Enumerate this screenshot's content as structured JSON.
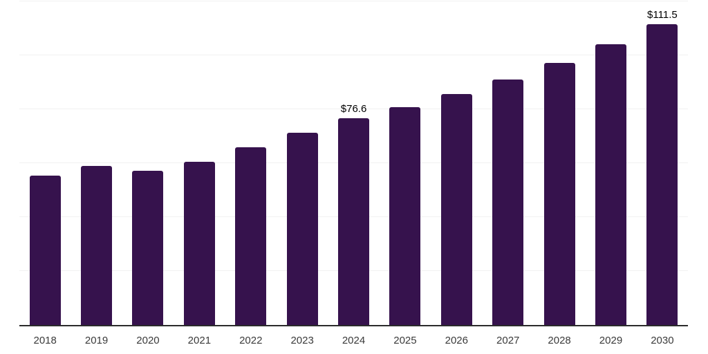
{
  "chart_data": {
    "type": "bar",
    "title": "",
    "xlabel": "",
    "ylabel": "",
    "categories": [
      "2018",
      "2019",
      "2020",
      "2021",
      "2022",
      "2023",
      "2024",
      "2025",
      "2026",
      "2027",
      "2028",
      "2029",
      "2030"
    ],
    "values": [
      55.4,
      58.9,
      57.2,
      60.5,
      65.9,
      71.2,
      76.6,
      80.9,
      85.7,
      91.1,
      97.2,
      104.1,
      111.5
    ],
    "data_labels": [
      null,
      null,
      null,
      null,
      null,
      null,
      "$76.6",
      null,
      null,
      null,
      null,
      null,
      "$111.5"
    ],
    "ylim": [
      0,
      120
    ],
    "gridline_values": [
      20,
      40,
      60,
      80,
      100,
      120
    ],
    "grid": "horizontal-only",
    "legend": "none",
    "colors": {
      "bar": "#36124D",
      "data_label": "#000000",
      "tick_label": "#3a3a3a",
      "axis_line": "#2b2b2b",
      "gridline": "#f1f1f1",
      "background": "#ffffff"
    }
  }
}
